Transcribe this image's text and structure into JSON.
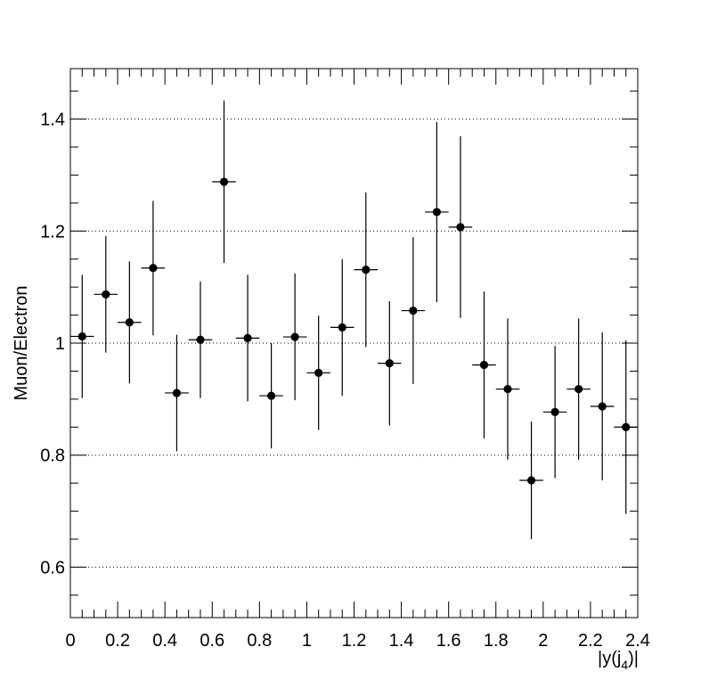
{
  "chart_data": {
    "type": "scatter",
    "title": "",
    "xlabel_main": "|y(j",
    "xlabel_sub": "4",
    "xlabel_end": ")|",
    "ylabel": "Muon/Electron",
    "xlim": [
      0,
      2.4
    ],
    "ylim": [
      0.51,
      1.49
    ],
    "grid_y": true,
    "grid_x": false,
    "xticks": [
      0,
      0.2,
      0.4,
      0.6,
      0.8,
      1,
      1.2,
      1.4,
      1.6,
      1.8,
      2,
      2.2,
      2.4
    ],
    "xtick_labels": [
      "0",
      "0.2",
      "0.4",
      "0.6",
      "0.8",
      "1",
      "1.2",
      "1.4",
      "1.6",
      "1.8",
      "2",
      "2.2",
      "2.4"
    ],
    "yticks": [
      0.6,
      0.8,
      1.0,
      1.2,
      1.4
    ],
    "ytick_labels": [
      "0.6",
      "0.8",
      "1",
      "1.2",
      "1.4"
    ],
    "bin_half_width": 0.05,
    "series": [
      {
        "x": [
          0.05,
          0.15,
          0.25,
          0.35,
          0.45,
          0.55,
          0.65,
          0.75,
          0.85,
          0.95,
          1.05,
          1.15,
          1.25,
          1.35,
          1.45,
          1.55,
          1.65,
          1.75,
          1.85,
          1.95,
          2.05,
          2.15,
          2.25,
          2.35
        ],
        "y": [
          1.012,
          1.087,
          1.037,
          1.134,
          0.911,
          1.006,
          1.288,
          1.009,
          0.906,
          1.011,
          0.947,
          1.028,
          1.131,
          0.964,
          1.058,
          1.234,
          1.207,
          0.961,
          0.918,
          0.755,
          0.877,
          0.918,
          0.887,
          0.85
        ],
        "yerr": [
          0.11,
          0.104,
          0.109,
          0.12,
          0.104,
          0.104,
          0.145,
          0.113,
          0.094,
          0.113,
          0.102,
          0.122,
          0.138,
          0.111,
          0.131,
          0.161,
          0.162,
          0.131,
          0.126,
          0.105,
          0.118,
          0.126,
          0.132,
          0.155
        ]
      }
    ]
  }
}
